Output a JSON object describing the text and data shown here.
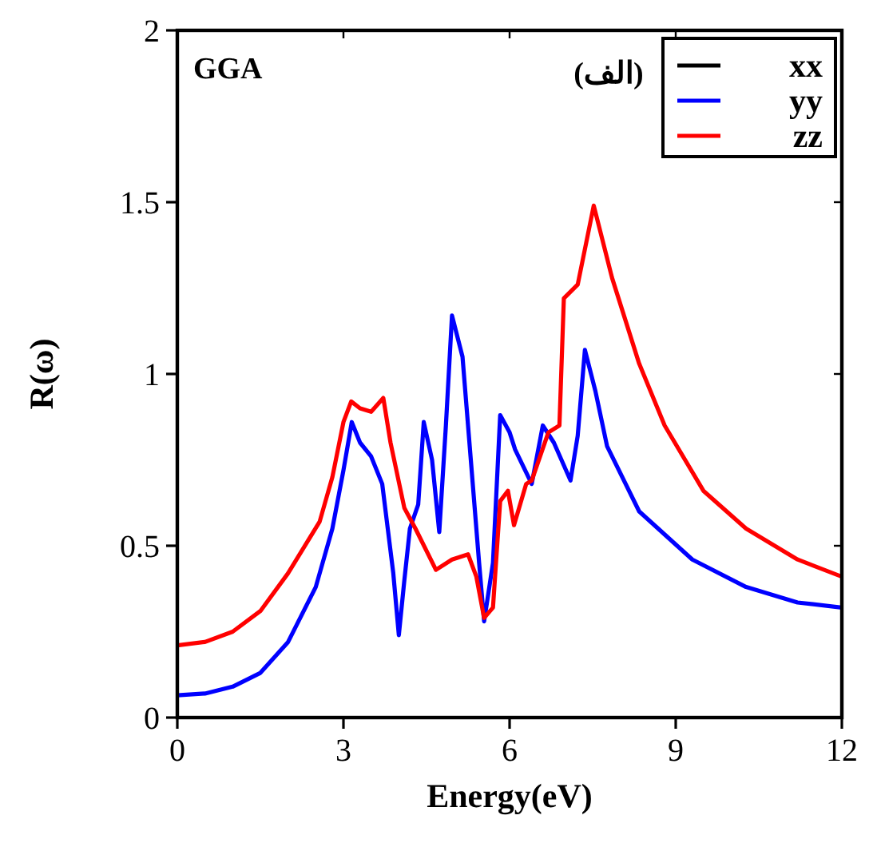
{
  "chart_data": {
    "type": "line",
    "xlabel": "Energy(eV)",
    "ylabel": "R(ω)",
    "annotations": [
      "GGA",
      "(الف)"
    ],
    "xlim": [
      0,
      12
    ],
    "ylim": [
      0,
      2
    ],
    "xticks": [
      0,
      3,
      6,
      9,
      12
    ],
    "yticks": [
      0,
      0.5,
      1,
      1.5,
      2
    ],
    "legend": "top right",
    "grid": false,
    "series": [
      {
        "name": "xx",
        "color": "#000000"
      },
      {
        "name": "yy",
        "color": "#0000ff",
        "x": [
          0,
          0.5,
          1,
          1.5,
          2,
          2.5,
          2.8,
          3.0,
          3.15,
          3.3,
          3.5,
          3.7,
          3.8,
          3.9,
          4.0,
          4.1,
          4.2,
          4.35,
          4.45,
          4.6,
          4.73,
          4.85,
          4.96,
          5.15,
          5.3,
          5.45,
          5.54,
          5.7,
          5.83,
          6.0,
          6.1,
          6.4,
          6.6,
          6.8,
          7.1,
          7.23,
          7.36,
          7.55,
          7.76,
          8.34,
          9.3,
          10.27,
          11.2,
          12
        ],
        "values": [
          0.065,
          0.07,
          0.09,
          0.13,
          0.22,
          0.38,
          0.55,
          0.72,
          0.86,
          0.8,
          0.76,
          0.68,
          0.55,
          0.42,
          0.24,
          0.4,
          0.55,
          0.62,
          0.86,
          0.75,
          0.54,
          0.85,
          1.17,
          1.05,
          0.75,
          0.45,
          0.28,
          0.45,
          0.88,
          0.83,
          0.78,
          0.68,
          0.85,
          0.8,
          0.69,
          0.82,
          1.07,
          0.95,
          0.79,
          0.6,
          0.46,
          0.38,
          0.335,
          0.32
        ]
      },
      {
        "name": "zz",
        "color": "#ff0000",
        "x": [
          0,
          0.5,
          1,
          1.5,
          2,
          2.57,
          2.8,
          3.0,
          3.14,
          3.3,
          3.5,
          3.72,
          3.85,
          4.1,
          4.3,
          4.67,
          4.96,
          5.25,
          5.4,
          5.54,
          5.7,
          5.83,
          5.97,
          6.08,
          6.3,
          6.4,
          6.7,
          6.9,
          6.98,
          7.23,
          7.52,
          7.85,
          8.34,
          8.8,
          9.5,
          10.27,
          11.2,
          12
        ],
        "values": [
          0.21,
          0.22,
          0.25,
          0.31,
          0.42,
          0.57,
          0.7,
          0.86,
          0.92,
          0.9,
          0.89,
          0.93,
          0.8,
          0.61,
          0.55,
          0.43,
          0.46,
          0.475,
          0.41,
          0.29,
          0.32,
          0.63,
          0.66,
          0.56,
          0.68,
          0.69,
          0.83,
          0.85,
          1.22,
          1.26,
          1.49,
          1.28,
          1.03,
          0.85,
          0.66,
          0.55,
          0.46,
          0.41
        ]
      }
    ]
  }
}
